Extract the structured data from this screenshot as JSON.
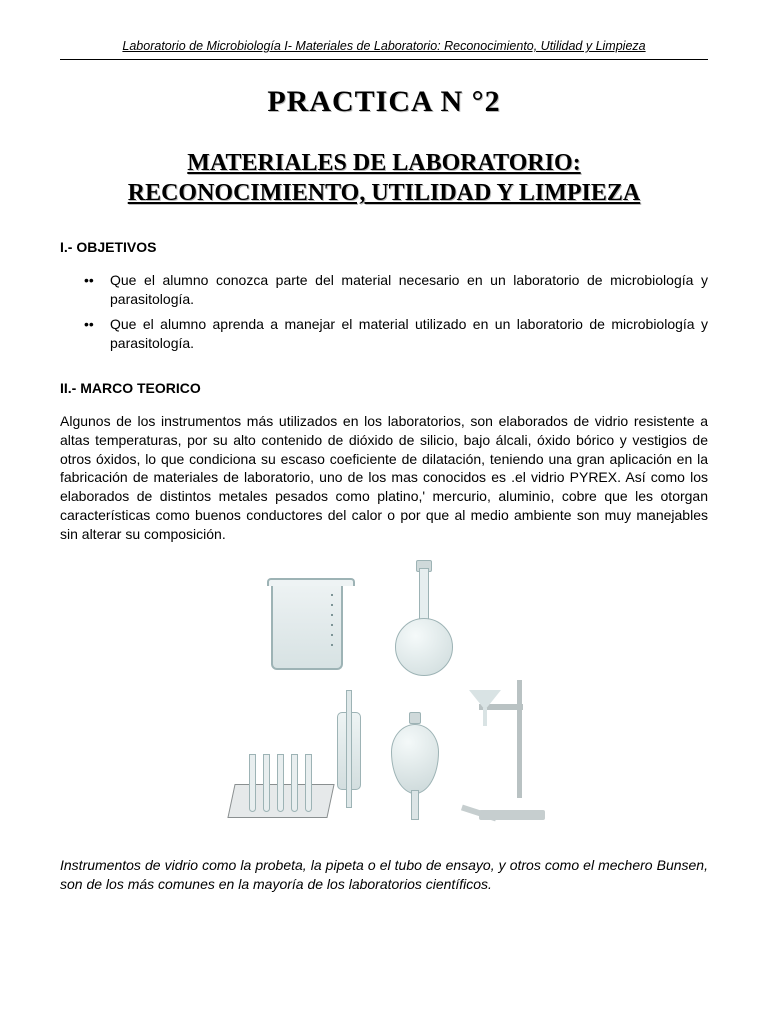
{
  "header": "Laboratorio de Microbiología  I- Materiales de Laboratorio: Reconocimiento, Utilidad y Limpieza",
  "title1": "PRACTICA N °2",
  "title2_l1": "MATERIALES DE LABORATORIO:",
  "title2_l2": "RECONOCIMIENTO, UTILIDAD Y LIMPIEZA",
  "sec1": "I.- OBJETIVOS",
  "bullets": [
    "Que el alumno conozca parte del material necesario en un laboratorio de microbiología y parasitología.",
    "Que el alumno aprenda a manejar el material utilizado en un laboratorio de microbiología y parasitología."
  ],
  "sec2": "II.- MARCO TEORICO",
  "para": "Algunos de los instrumentos más utilizados en los laboratorios, son elaborados de vidrio resistente a altas temperaturas, por su alto contenido de dióxido de silicio, bajo álcali, óxido bórico y vestigios de otros óxidos, lo que condiciona su escaso coeficiente de dilatación, teniendo una gran aplicación en la fabricación de materiales de laboratorio, uno de los mas conocidos es .el vidrio PYREX. Así como los elaborados de distintos metales pesados como platino,' mercurio, aluminio, cobre que les otorgan características como buenos conductores del calor o por que al medio ambiente son muy manejables sin alterar su composición.",
  "caption": "Instrumentos de vidrio como la probeta, la pipeta o el tubo de ensayo, y otros como el mechero Bunsen, son de los más comunes en la mayoría de los laboratorios científicos.",
  "colors": {
    "text": "#000000",
    "glass_border": "#9db3b5",
    "glass_fill": "#e6eeef",
    "bg": "#ffffff"
  }
}
